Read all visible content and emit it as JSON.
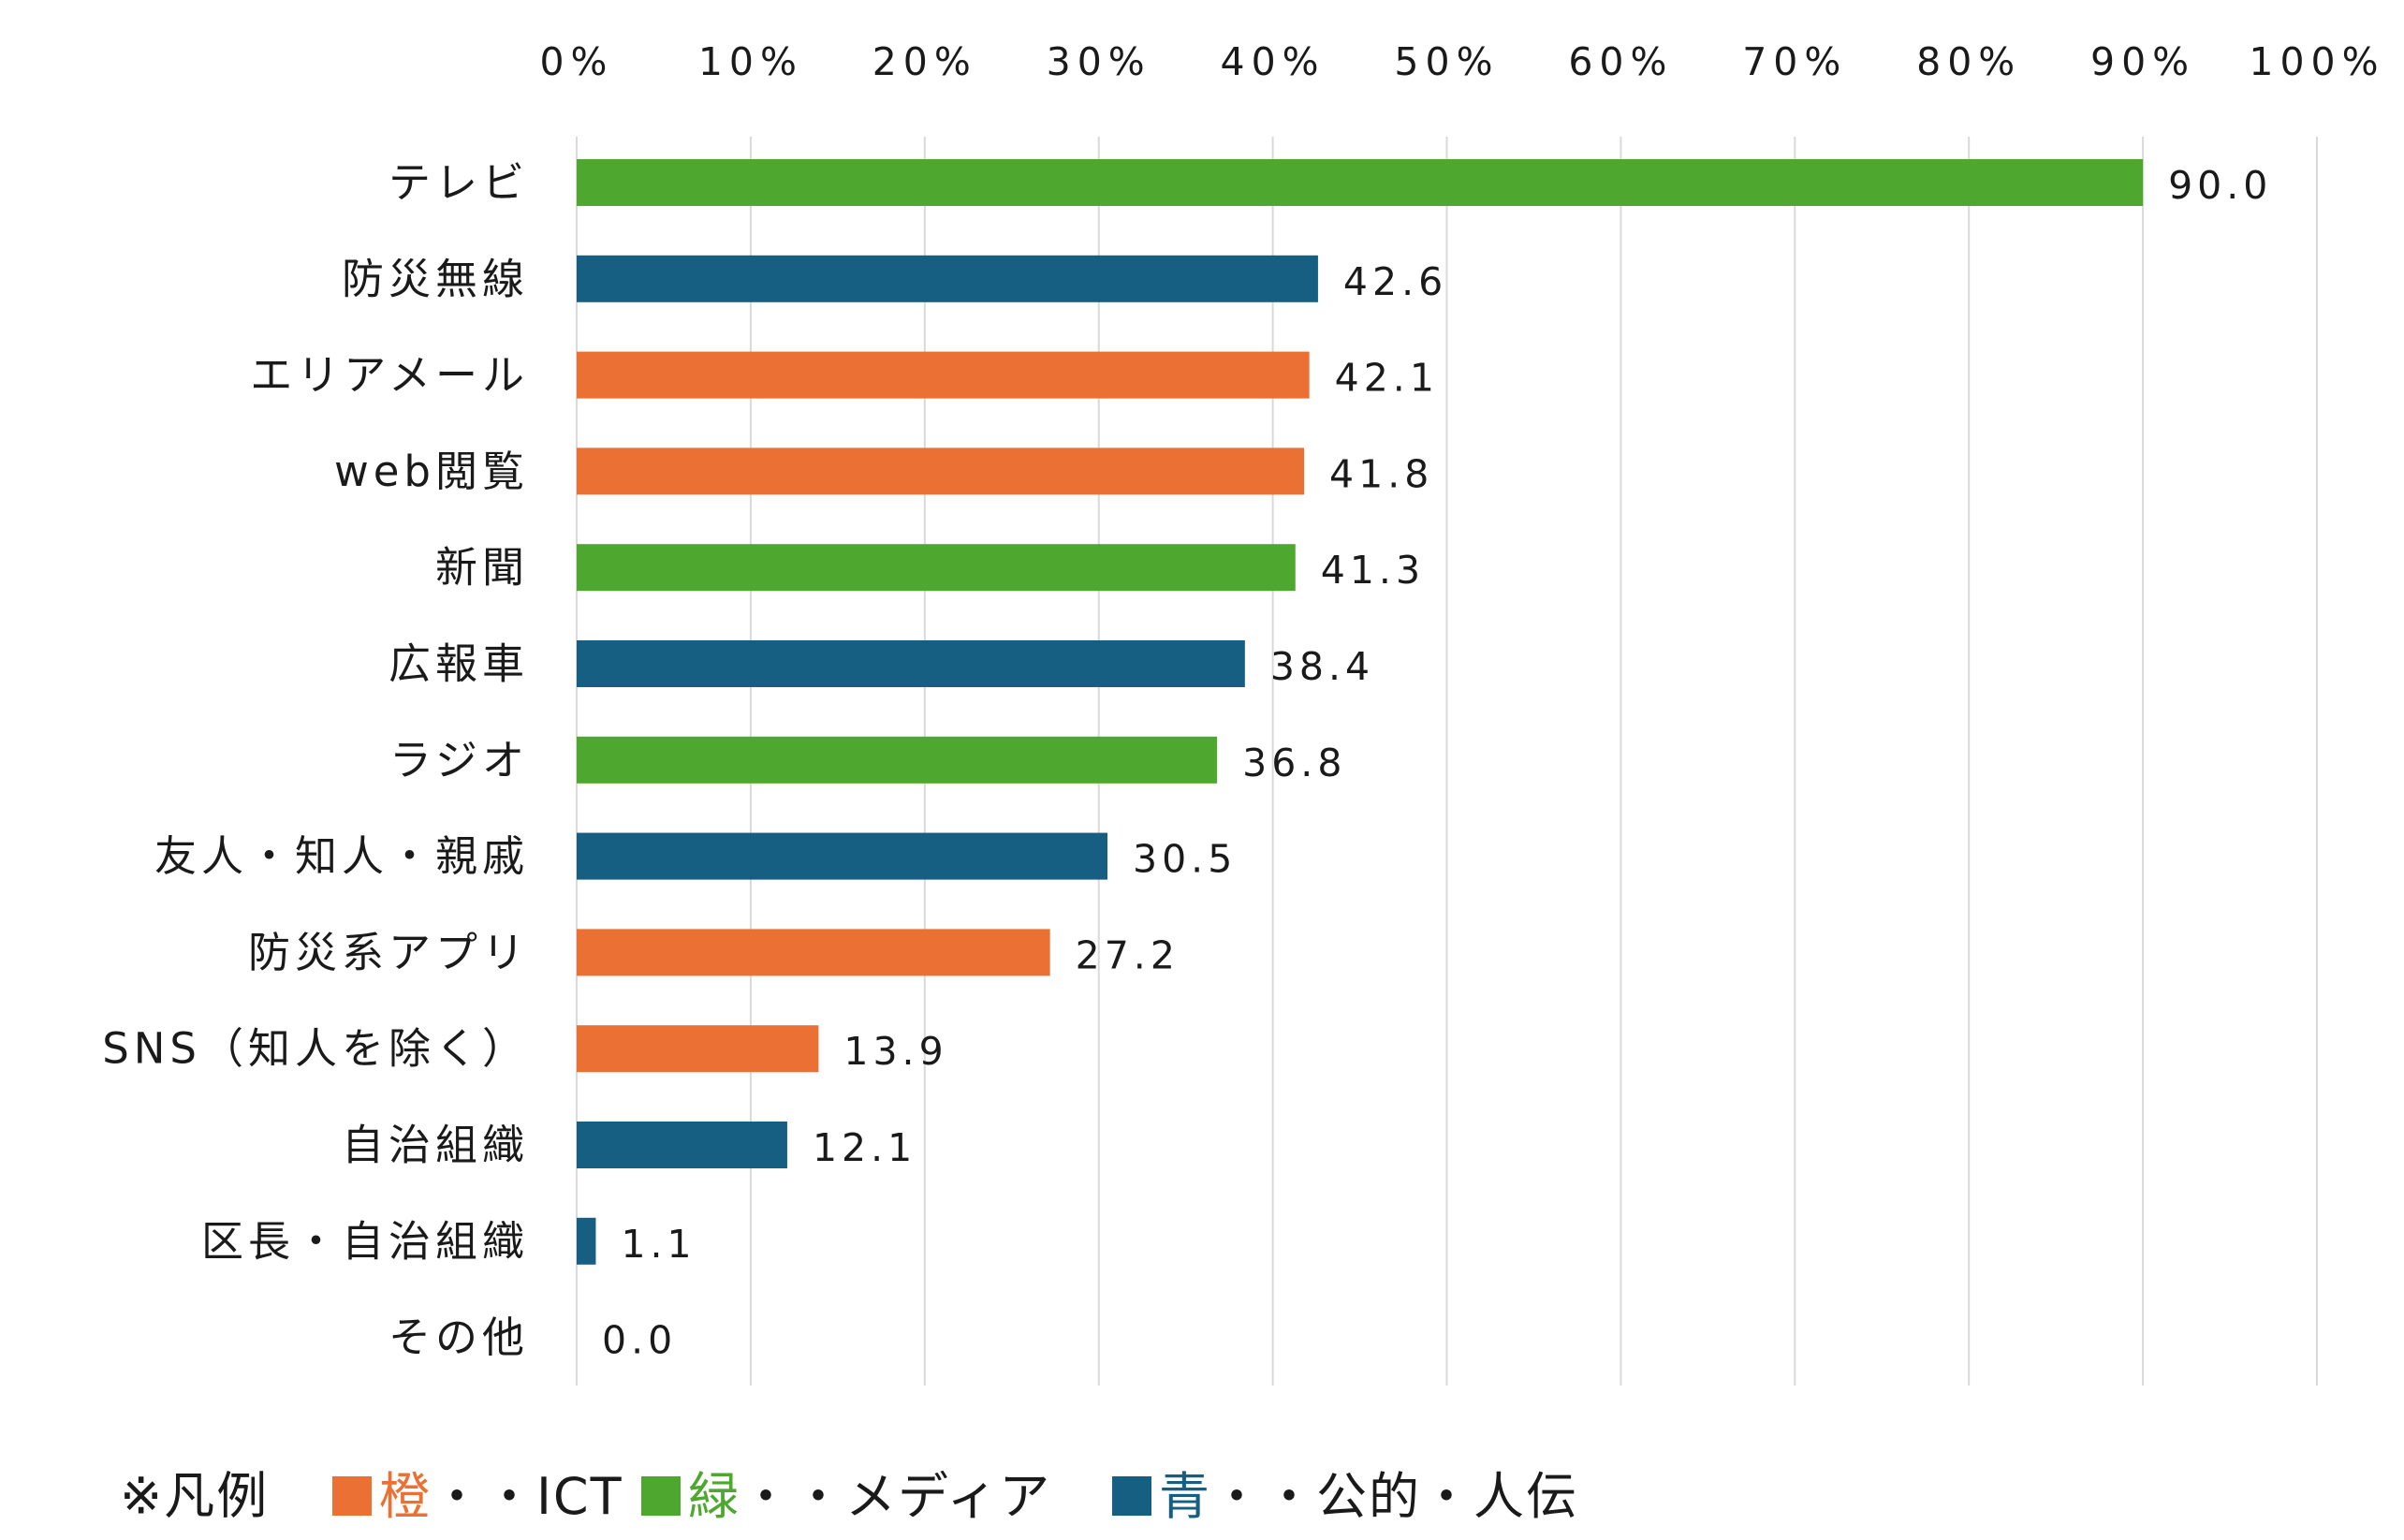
{
  "chart_data": {
    "type": "bar",
    "orientation": "horizontal",
    "x_ticks": [
      "0%",
      "10%",
      "20%",
      "30%",
      "40%",
      "50%",
      "60%",
      "70%",
      "80%",
      "90%",
      "100%"
    ],
    "xlim": [
      0,
      100
    ],
    "grid": "vertical",
    "categories": [
      "テレビ",
      "防災無線",
      "エリアメール",
      "web閲覧",
      "新聞",
      "広報車",
      "ラジオ",
      "友人・知人・親戚",
      "防災系アプリ",
      "SNS（知人を除く）",
      "自治組織",
      "区長・自治組織",
      "その他"
    ],
    "values": [
      90.0,
      42.6,
      42.1,
      41.8,
      41.3,
      38.4,
      36.8,
      30.5,
      27.2,
      13.9,
      12.1,
      1.1,
      0.0
    ],
    "value_labels": [
      "90.0",
      "42.6",
      "42.1",
      "41.8",
      "41.3",
      "38.4",
      "36.8",
      "30.5",
      "27.2",
      "13.9",
      "12.1",
      "1.1",
      "0.0"
    ],
    "groups": [
      "green",
      "blue",
      "orange",
      "orange",
      "green",
      "blue",
      "green",
      "blue",
      "orange",
      "orange",
      "blue",
      "blue",
      "none"
    ],
    "colors": {
      "orange": "#ea7133",
      "green": "#4ea72e",
      "blue": "#165f83",
      "none": "#cccccc",
      "grid": "#d9d9d9"
    },
    "legend": {
      "placement": "bottom-left",
      "prefix": "※凡例",
      "items": [
        {
          "group": "orange",
          "name": "橙",
          "suffix": "・・ICT"
        },
        {
          "group": "green",
          "name": "緑",
          "suffix": "・・メディア"
        },
        {
          "group": "blue",
          "name": "青",
          "suffix": "・・公的・人伝"
        }
      ]
    }
  }
}
